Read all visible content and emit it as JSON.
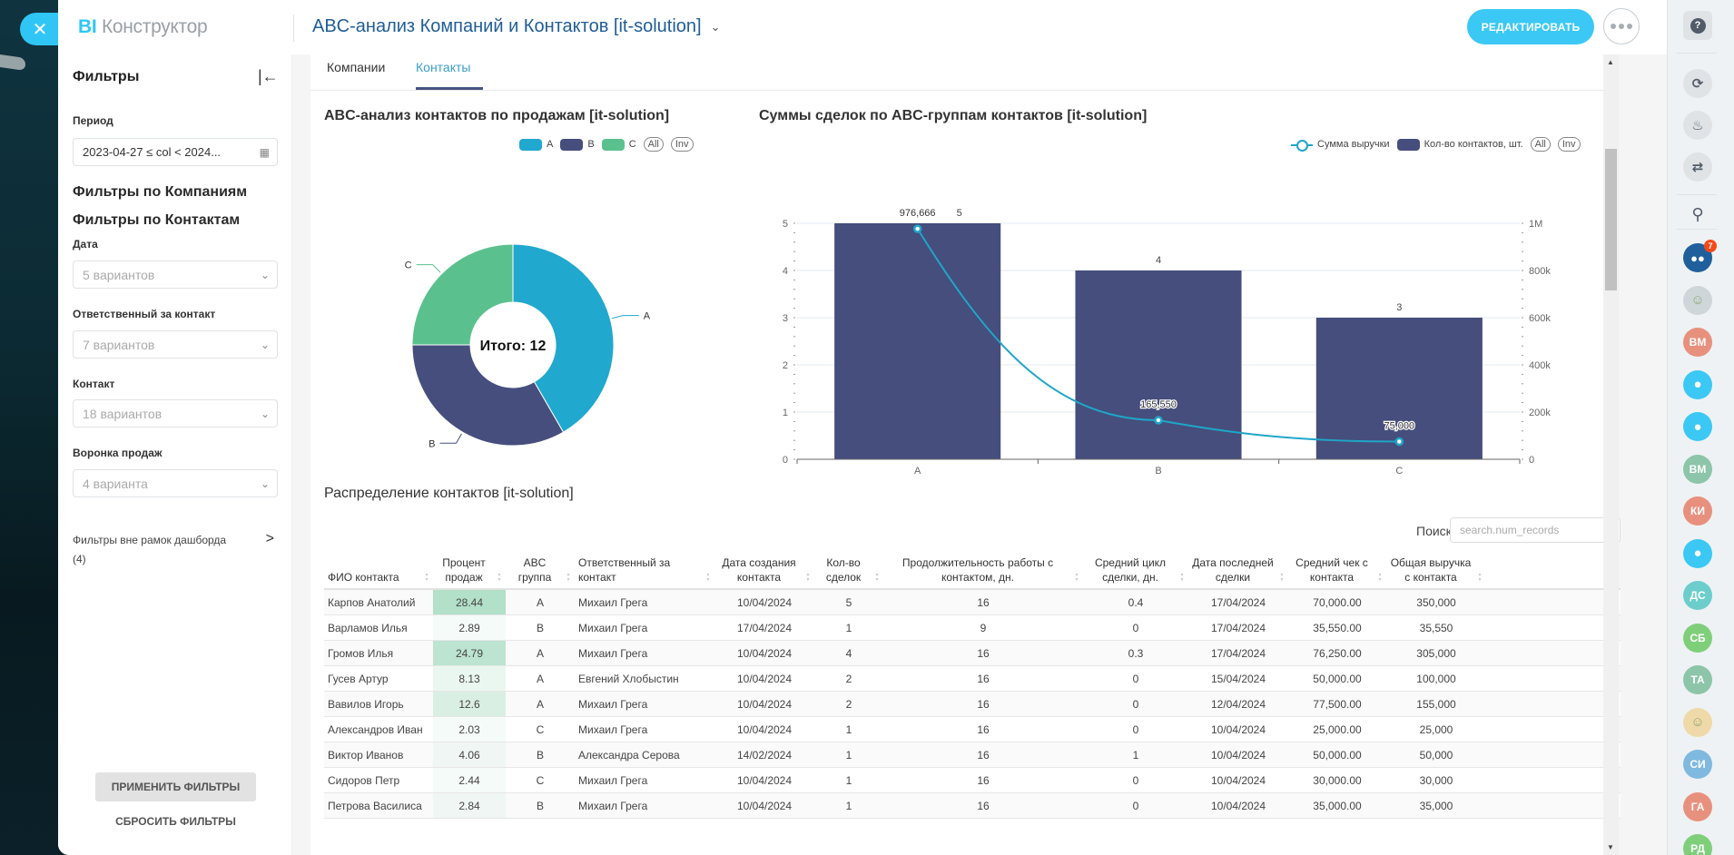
{
  "app": {
    "logo_bi": "BI",
    "logo_text": "Конструктор",
    "dashboard_title": "ABC-анализ Компаний и Контактов [it-solution]",
    "edit_label": "РЕДАКТИРОВАТЬ",
    "close_icon": "close-icon"
  },
  "filters": {
    "title": "Фильтры",
    "period_label": "Период",
    "period_value": "2023-04-27 ≤ col < 2024...",
    "section_companies": "Фильтры по Компаниям",
    "section_contacts": "Фильтры по Контактам",
    "fields": [
      {
        "label": "Дата",
        "value": "5 вариантов"
      },
      {
        "label": "Ответственный за контакт",
        "value": "7 вариантов"
      },
      {
        "label": "Контакт",
        "value": "18 вариантов"
      },
      {
        "label": "Воронка продаж",
        "value": "4 варианта"
      }
    ],
    "outside_label": "Фильтры вне рамок дашборда",
    "outside_count": "(4)",
    "apply_label": "ПРИМЕНИТЬ ФИЛЬТРЫ",
    "reset_label": "СБРОСИТЬ ФИЛЬТРЫ"
  },
  "tabs": [
    {
      "label": "Компании",
      "active": false
    },
    {
      "label": "Контакты",
      "active": true
    }
  ],
  "chart_data": [
    {
      "type": "pie",
      "title": "ABC-анализ контактов по продажам [it-solution]",
      "categories": [
        "A",
        "B",
        "C"
      ],
      "values": [
        5,
        4,
        3
      ],
      "colors": [
        "#20a8ce",
        "#454e7c",
        "#5ac18e"
      ],
      "center_label": "Итого: 12",
      "legend": [
        "A",
        "B",
        "C"
      ],
      "legend_controls": [
        "All",
        "Inv"
      ],
      "legend_position": "top-right"
    },
    {
      "type": "bar",
      "title": "Суммы сделок по ABC-группам контактов [it-solution]",
      "categories": [
        "A",
        "B",
        "C"
      ],
      "series": [
        {
          "name": "Кол-во контактов, шт.",
          "type": "bar",
          "axis": "left",
          "values": [
            5,
            4,
            3
          ],
          "labels": [
            "5",
            "4",
            "3"
          ],
          "color": "#454e7c"
        },
        {
          "name": "Сумма выручки",
          "type": "line",
          "axis": "right",
          "values": [
            976666,
            165550,
            75000
          ],
          "labels": [
            "976,666",
            "165,550",
            "75,000"
          ],
          "color": "#1fa6c8"
        }
      ],
      "y_left": {
        "range": [
          0,
          5
        ],
        "ticks": [
          "0",
          "1",
          "2",
          "3",
          "4",
          "5"
        ]
      },
      "y_right": {
        "range": [
          0,
          1000000
        ],
        "ticks": [
          "0",
          "200k",
          "400k",
          "600k",
          "800k",
          "1M"
        ]
      },
      "legend_controls": [
        "All",
        "Inv"
      ],
      "legend_position": "top-right",
      "grid": true
    }
  ],
  "table": {
    "title": "Распределение контактов [it-solution]",
    "search_label": "Поиск",
    "search_placeholder": "search.num_records",
    "columns": [
      "ФИО контакта",
      "Процент продаж",
      "ABC группа",
      "Ответственный за контакт",
      "Дата создания контакта",
      "Кол-во сделок",
      "Продолжительность работы с контактом, дн.",
      "Средний цикл сделки, дн.",
      "Дата последней сделки",
      "Средний чек с контакта",
      "Общая выручка с контакта"
    ],
    "rows": [
      [
        "Карпов Анатолий",
        "28.44",
        "A",
        "Михаил Грега",
        "10/04/2024",
        "5",
        "16",
        "0.4",
        "17/04/2024",
        "70,000.00",
        "350,000"
      ],
      [
        "Варламов Илья",
        "2.89",
        "B",
        "Михаил Грега",
        "17/04/2024",
        "1",
        "9",
        "0",
        "17/04/2024",
        "35,550.00",
        "35,550"
      ],
      [
        "Громов Илья",
        "24.79",
        "A",
        "Михаил Грега",
        "10/04/2024",
        "4",
        "16",
        "0.3",
        "17/04/2024",
        "76,250.00",
        "305,000"
      ],
      [
        "Гусев Артур",
        "8.13",
        "A",
        "Евгений Хлобыстин",
        "10/04/2024",
        "2",
        "16",
        "0",
        "15/04/2024",
        "50,000.00",
        "100,000"
      ],
      [
        "Вавилов Игорь",
        "12.6",
        "A",
        "Михаил Грега",
        "10/04/2024",
        "2",
        "16",
        "0",
        "12/04/2024",
        "77,500.00",
        "155,000"
      ],
      [
        "Александров Иван",
        "2.03",
        "C",
        "Михаил Грега",
        "10/04/2024",
        "1",
        "16",
        "0",
        "10/04/2024",
        "25,000.00",
        "25,000"
      ],
      [
        "Виктор Иванов",
        "4.06",
        "B",
        "Александра Серова",
        "14/02/2024",
        "1",
        "16",
        "1",
        "10/04/2024",
        "50,000.00",
        "50,000"
      ],
      [
        "Сидоров Петр",
        "2.44",
        "C",
        "Михаил Грега",
        "10/04/2024",
        "1",
        "16",
        "0",
        "10/04/2024",
        "30,000.00",
        "30,000"
      ],
      [
        "Петрова Василиса",
        "2.84",
        "B",
        "Михаил Грега",
        "10/04/2024",
        "1",
        "16",
        "0",
        "10/04/2024",
        "35,000.00",
        "35,000"
      ]
    ]
  },
  "rightbar": {
    "help_label": "?",
    "icons": [
      "copilot-icon",
      "bell-icon",
      "chat-list-icon",
      "search-icon"
    ],
    "chat_badge": "7",
    "avatars": [
      {
        "type": "group-chat",
        "color": "#1f5f9c"
      },
      {
        "type": "photo",
        "color": "#cfd6d9"
      },
      {
        "type": "initials",
        "text": "ВМ",
        "color": "#e8907e"
      },
      {
        "type": "user-clock",
        "color": "#3bc8f5"
      },
      {
        "type": "user-clock",
        "color": "#3bc8f5"
      },
      {
        "type": "initials",
        "text": "ВМ",
        "color": "#8cc5a9"
      },
      {
        "type": "initials",
        "text": "КИ",
        "color": "#e8907e"
      },
      {
        "type": "user-clock",
        "color": "#3bc8f5"
      },
      {
        "type": "initials",
        "text": "ДС",
        "color": "#6ccdcb"
      },
      {
        "type": "initials",
        "text": "СБ",
        "color": "#7fcf7a"
      },
      {
        "type": "initials",
        "text": "ТА",
        "color": "#8cc5a9"
      },
      {
        "type": "photo-group",
        "color": "#f0d9a8"
      },
      {
        "type": "initials",
        "text": "СИ",
        "color": "#7fb9df"
      },
      {
        "type": "initials",
        "text": "ГА",
        "color": "#e8907e"
      },
      {
        "type": "initials",
        "text": "РД",
        "color": "#7fcf7a"
      }
    ]
  }
}
